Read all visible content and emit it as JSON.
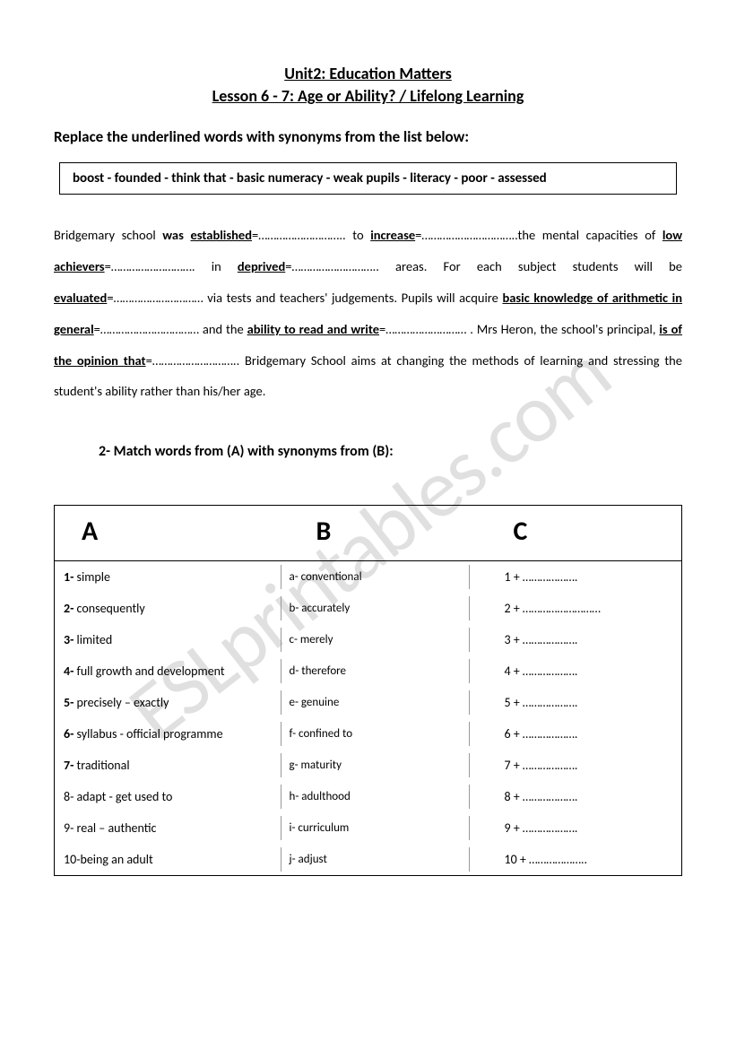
{
  "watermark": "ESLprintables.com",
  "header": {
    "line1": "Unit2: Education Matters",
    "line2": "Lesson 6 - 7: Age or Ability? / Lifelong Learning"
  },
  "exercise1": {
    "instruction": "Replace the underlined words with synonyms from the list below:",
    "wordbox": "boost  - founded - think that -  basic numeracy  -  weak pupils  -  literacy  -  poor   -   assessed",
    "passage": {
      "p1a": " Bridgemary school ",
      "p1b_was": "was ",
      "p1c_established": "established",
      "p1d": "=……………………….. to ",
      "p1e_increase": "increase",
      "p1f": "=…………………………..the mental capacities of ",
      "p1g_low": "low achievers",
      "p1h": "=………………………. in ",
      "p1i_deprived": "deprived",
      "p1j": "=……………………….. areas. For each subject students will be ",
      "p1k_evaluated": "evaluated",
      "p1l": "=………………………… via tests and teachers' judgements. Pupils will acquire ",
      "p1m_basic": "basic knowledge of arithmetic in general",
      "p1n": "=…………………………… and the ",
      "p1o_ability": "ability to read and write",
      "p1p": "=……………………… . Mrs Heron, the school's principal, ",
      "p1q_opinion": "is of the opinion that",
      "p1r": "=……………………….. Bridgemary School aims at changing the methods of learning and stressing the student's ability rather than his/her age."
    }
  },
  "exercise2": {
    "instruction": "2-  Match words from (A) with synonyms from (B):",
    "headers": {
      "a": "A",
      "b": "B",
      "c": "C"
    },
    "rows": [
      {
        "a_num": "1-",
        "a_text": " simple",
        "b_lett": "a-",
        "b_text": " conventional",
        "c": "1 + ……………….",
        "a_bold": true
      },
      {
        "a_num": "2-",
        "a_text": " consequently",
        "b_lett": "b-",
        "b_text": " accurately",
        "c": "2 + ………………………",
        "a_bold": true
      },
      {
        "a_num": "3-",
        "a_text": " limited",
        "b_lett": "c-",
        "b_text": " merely",
        "c": "3 + ……………….",
        "a_bold": true
      },
      {
        "a_num": "4-",
        "a_text": " full growth and development",
        "b_lett": "d-",
        "b_text": " therefore",
        "c": "4 + ……………….",
        "a_bold": true
      },
      {
        "a_num": "5-",
        "a_text": " precisely – exactly",
        "b_lett": "e-",
        "b_text": " genuine",
        "c": "5 + ……………….",
        "a_bold": true
      },
      {
        "a_num": "6-",
        "a_text": " syllabus - official programme",
        "b_lett": "f-",
        "b_text": " confined to",
        "c": "6 + ……………….",
        "a_bold": true
      },
      {
        "a_num": "7-",
        "a_text": " traditional",
        "b_lett": "g-",
        "b_text": " maturity",
        "c": "7 + ……………….",
        "a_bold": true
      },
      {
        "a_num": "8-",
        "a_text": " adapt - get used to",
        "b_lett": "h-",
        "b_text": " adulthood",
        "c": "8 + ……………….",
        "a_bold": false
      },
      {
        "a_num": "9-",
        "a_text": " real – authentic",
        "b_lett": "i-",
        "b_text": " curriculum",
        "c": "9 + ……………….",
        "a_bold": false
      },
      {
        "a_num": "10-",
        "a_text": "being an adult",
        "b_lett": "j-",
        "b_text": " adjust",
        "c": "10 + ………………..",
        "a_bold": false
      }
    ]
  }
}
